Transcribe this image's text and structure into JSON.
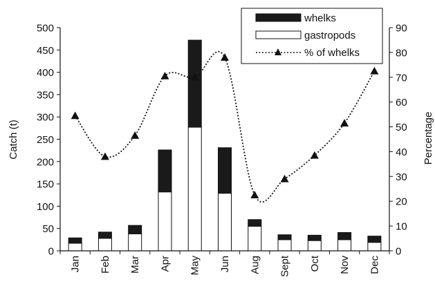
{
  "chart_data": {
    "type": "bar",
    "categories": [
      "Jan",
      "Feb",
      "Mar",
      "Apr",
      "May",
      "Jun",
      "Aug",
      "Sept",
      "Oct",
      "Nov",
      "Dec"
    ],
    "series": [
      {
        "name": "gastropods",
        "type": "bar",
        "axis": "left",
        "values": [
          17,
          28,
          38,
          132,
          277,
          129,
          55,
          25,
          23,
          25,
          19
        ],
        "color": "#ffffff"
      },
      {
        "name": "whelks",
        "type": "bar",
        "axis": "left",
        "values": [
          12,
          14,
          19,
          94,
          195,
          102,
          15,
          11,
          12,
          16,
          14
        ],
        "color": "#1a1a1a"
      },
      {
        "name": "% of whelks",
        "type": "line",
        "axis": "right",
        "values": [
          54.5,
          38.0,
          46.5,
          70.5,
          70.0,
          78.0,
          22.5,
          29.0,
          38.5,
          51.5,
          72.5
        ],
        "color": "#1a1a1a",
        "line_style": "dotted",
        "marker": "triangle"
      }
    ],
    "ylabel": "Catch (t)",
    "ylim": [
      0,
      500
    ],
    "yticks": [
      0,
      50,
      100,
      150,
      200,
      250,
      300,
      350,
      400,
      450,
      500
    ],
    "y2label": "Percentage",
    "y2lim": [
      0,
      90
    ],
    "y2ticks": [
      0,
      10,
      20,
      30,
      40,
      50,
      60,
      70,
      80,
      90
    ],
    "legend": {
      "placement": "top-right",
      "entries": [
        "whelks",
        "gastropods",
        "% of whelks"
      ]
    },
    "grid": false,
    "stacked": true
  }
}
